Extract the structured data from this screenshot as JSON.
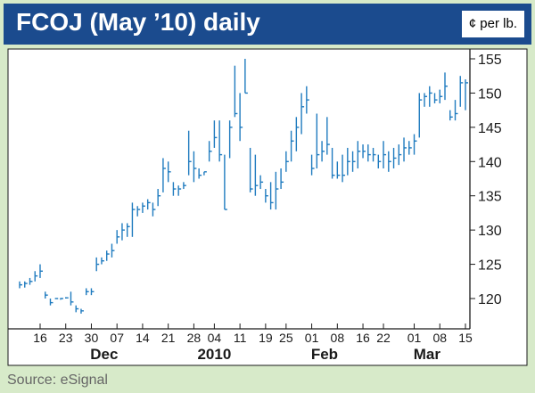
{
  "header": {
    "title": "FCOJ (May ’10) daily",
    "units": "¢ per lb."
  },
  "source": "Source: eSignal",
  "colors": {
    "series": "#1f7bbf",
    "title_bg": "#1b4b8e",
    "page_bg": "#d7eac9",
    "axis": "#1a1a1a"
  },
  "chart_data": {
    "type": "bar",
    "subtype": "ohlc",
    "title": "FCOJ (May ’10) daily",
    "ylabel": "¢ per lb.",
    "ylim": [
      116,
      156
    ],
    "y_ticks": [
      120,
      125,
      130,
      135,
      140,
      145,
      150,
      155
    ],
    "x_tick_labels": [
      "16",
      "23",
      "30",
      "07",
      "14",
      "21",
      "28",
      "04",
      "11",
      "19",
      "25",
      "01",
      "08",
      "16",
      "22",
      "01",
      "08",
      "15"
    ],
    "x_tick_index": [
      4,
      9,
      14,
      19,
      24,
      29,
      34,
      38,
      43,
      48,
      52,
      57,
      62,
      67,
      71,
      77,
      82,
      87
    ],
    "x_group_labels": [
      "Dec",
      "2010",
      "Feb",
      "Mar"
    ],
    "x_group_index": [
      16.5,
      38,
      59.5,
      79.5
    ],
    "grid": false,
    "legend": "none",
    "series": [
      {
        "bars": [
          [
            122.5,
            121.5,
            122.0
          ],
          [
            122.5,
            121.6,
            122.2
          ],
          [
            123.0,
            122.0,
            122.5
          ],
          [
            124.0,
            122.5,
            123.3
          ],
          [
            125.0,
            123.0,
            124.0
          ],
          [
            121.0,
            120.0,
            120.5
          ],
          [
            120.0,
            119.0,
            119.4
          ],
          [
            120.0,
            120.0,
            120.0
          ],
          [
            120.0,
            119.9,
            120.0
          ],
          [
            120.2,
            120.0,
            120.1
          ],
          [
            121.0,
            119.0,
            119.5
          ],
          [
            119.0,
            118.0,
            118.5
          ],
          [
            118.5,
            117.8,
            118.2
          ],
          [
            121.5,
            120.5,
            121.0
          ],
          [
            121.5,
            120.5,
            121.0
          ],
          [
            126.0,
            124.0,
            125.0
          ],
          [
            126.0,
            125.0,
            125.5
          ],
          [
            127.0,
            125.5,
            126.5
          ],
          [
            128.0,
            126.0,
            127.0
          ],
          [
            130.0,
            128.0,
            129.0
          ],
          [
            131.0,
            128.5,
            130.0
          ],
          [
            131.0,
            129.0,
            130.5
          ],
          [
            134.0,
            129.0,
            133.0
          ],
          [
            133.5,
            132.0,
            133.0
          ],
          [
            134.0,
            132.5,
            133.5
          ],
          [
            134.5,
            133.0,
            134.0
          ],
          [
            134.0,
            132.0,
            133.0
          ],
          [
            136.0,
            133.5,
            135.0
          ],
          [
            140.5,
            135.5,
            139.0
          ],
          [
            140.0,
            137.0,
            138.5
          ],
          [
            137.0,
            135.0,
            136.0
          ],
          [
            136.5,
            135.0,
            136.0
          ],
          [
            137.0,
            136.0,
            136.5
          ],
          [
            144.5,
            138.0,
            140.0
          ],
          [
            141.5,
            137.0,
            139.0
          ],
          [
            139.0,
            137.5,
            138.0
          ],
          [
            138.5,
            138.0,
            138.5
          ],
          [
            143.0,
            140.0,
            141.5
          ],
          [
            146.0,
            142.0,
            143.5
          ],
          [
            146.0,
            140.0,
            141.0
          ],
          [
            141.0,
            133.0,
            133.0
          ],
          [
            146.0,
            140.5,
            145.0
          ],
          [
            154.0,
            146.5,
            147.0
          ],
          [
            150.0,
            143.0,
            145.0
          ],
          [
            155.0,
            150.0,
            150.0
          ],
          [
            142.0,
            135.5,
            136.0
          ],
          [
            141.0,
            135.0,
            136.5
          ],
          [
            138.0,
            136.0,
            137.0
          ],
          [
            136.0,
            134.0,
            135.0
          ],
          [
            137.0,
            133.0,
            134.0
          ],
          [
            138.5,
            133.0,
            136.0
          ],
          [
            139.0,
            136.0,
            137.0
          ],
          [
            141.5,
            138.5,
            140.0
          ],
          [
            144.5,
            140.0,
            143.0
          ],
          [
            146.5,
            141.5,
            145.0
          ],
          [
            150.0,
            144.0,
            148.0
          ],
          [
            151.0,
            147.0,
            149.0
          ],
          [
            141.0,
            138.0,
            139.0
          ],
          [
            147.0,
            139.0,
            141.0
          ],
          [
            143.0,
            140.0,
            141.5
          ],
          [
            146.5,
            141.0,
            142.5
          ],
          [
            142.0,
            137.5,
            138.0
          ],
          [
            140.0,
            137.5,
            138.0
          ],
          [
            141.0,
            137.0,
            138.0
          ],
          [
            142.0,
            138.0,
            140.0
          ],
          [
            141.5,
            138.5,
            140.0
          ],
          [
            143.0,
            139.0,
            141.5
          ],
          [
            142.5,
            140.5,
            141.5
          ],
          [
            142.5,
            140.0,
            141.0
          ],
          [
            142.0,
            140.0,
            141.0
          ],
          [
            141.0,
            139.0,
            140.0
          ],
          [
            143.0,
            139.0,
            141.0
          ],
          [
            141.5,
            138.5,
            140.0
          ],
          [
            142.0,
            139.0,
            140.5
          ],
          [
            142.5,
            139.5,
            141.0
          ],
          [
            143.5,
            140.0,
            142.0
          ],
          [
            143.0,
            141.0,
            142.0
          ],
          [
            144.0,
            141.0,
            143.0
          ],
          [
            150.0,
            143.5,
            149.0
          ],
          [
            150.0,
            148.0,
            149.5
          ],
          [
            151.0,
            148.0,
            150.0
          ],
          [
            150.0,
            148.5,
            149.0
          ],
          [
            150.5,
            148.5,
            149.5
          ],
          [
            153.0,
            149.0,
            151.0
          ],
          [
            147.5,
            146.0,
            146.5
          ],
          [
            149.0,
            146.0,
            147.0
          ],
          [
            152.5,
            148.0,
            151.5
          ],
          [
            152.0,
            147.5,
            151.5
          ]
        ]
      }
    ]
  }
}
